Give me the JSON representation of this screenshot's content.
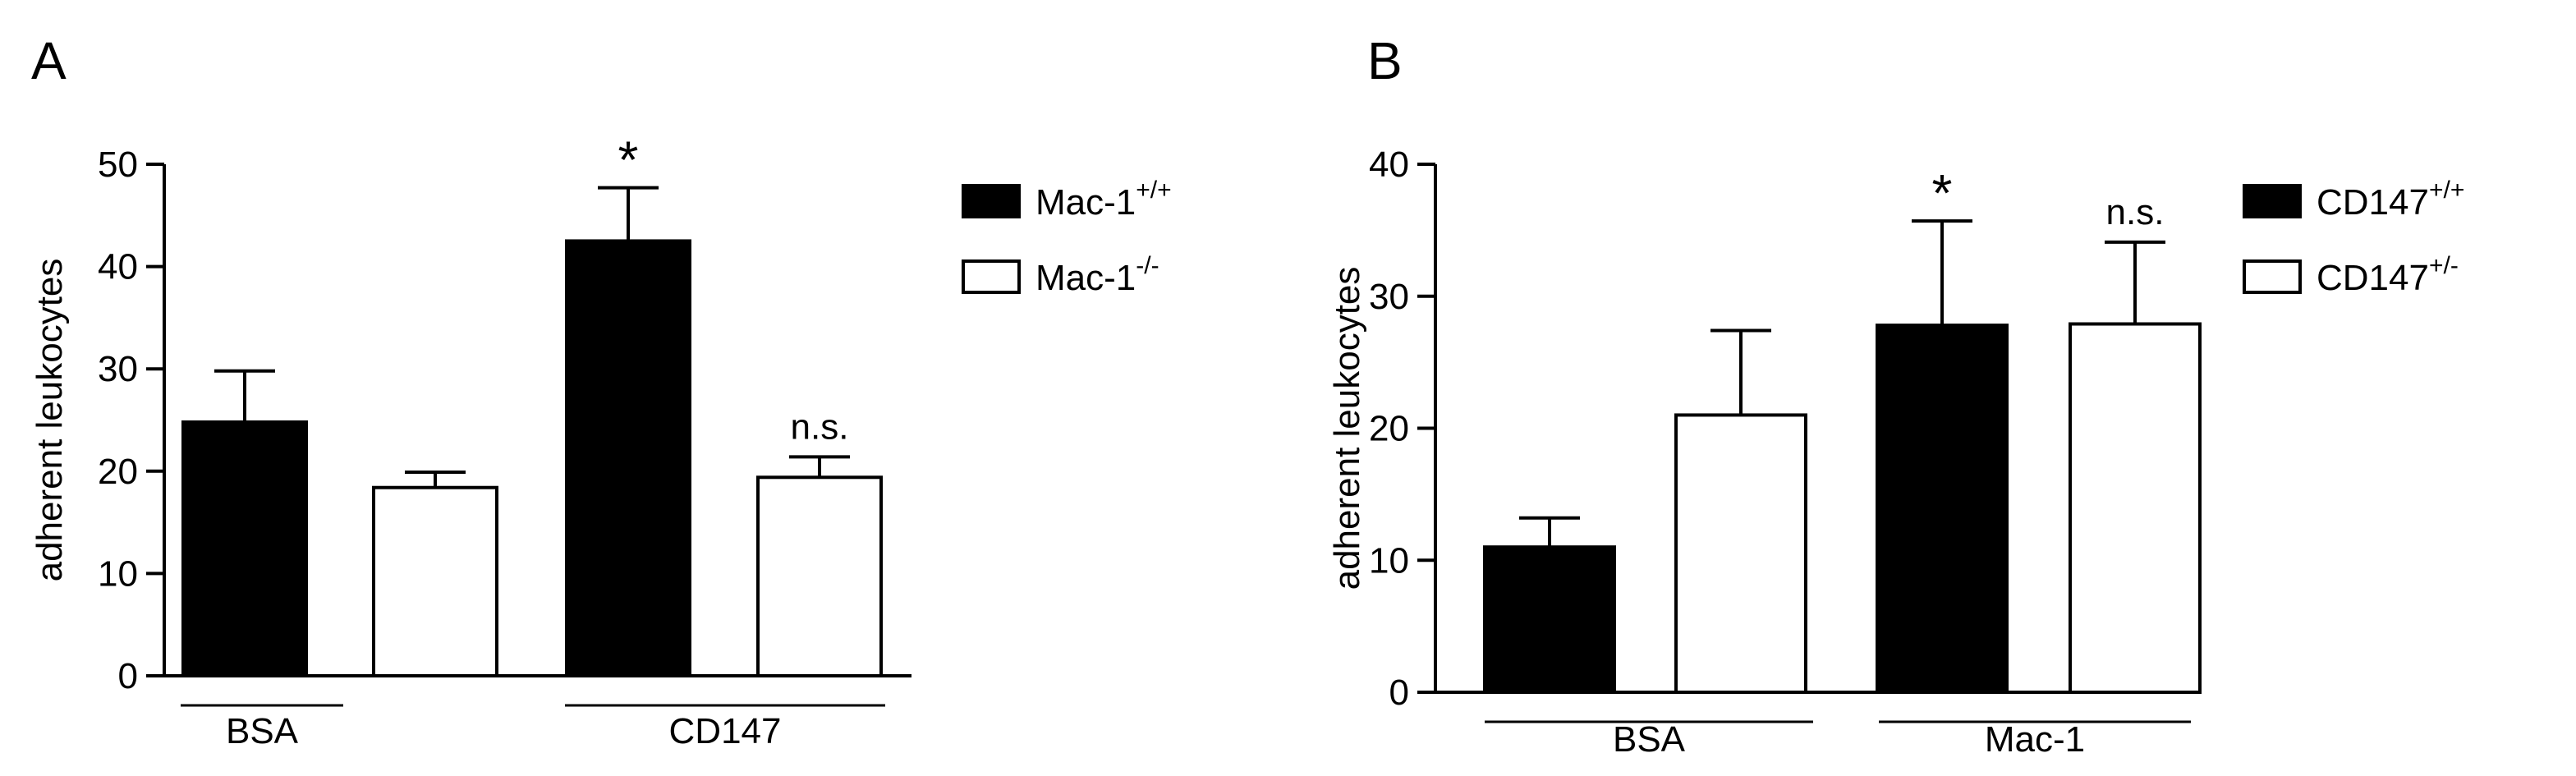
{
  "panels": [
    {
      "panel_label": "A",
      "ylabel": "adherent leukocytes",
      "yticks": [
        "0",
        "10",
        "20",
        "30",
        "40",
        "50"
      ],
      "legend": [
        {
          "base": "Mac-1",
          "sup": "+/+",
          "fill": "#000000"
        },
        {
          "base": "Mac-1",
          "sup": "-/-",
          "fill": "#ffffff"
        }
      ],
      "annotations": [
        "",
        "",
        "*",
        "n.s."
      ]
    },
    {
      "panel_label": "B",
      "ylabel": "adherent leukocytes",
      "yticks": [
        "0",
        "10",
        "20",
        "30",
        "40"
      ],
      "legend": [
        {
          "base": "CD147",
          "sup": "+/+",
          "fill": "#000000"
        },
        {
          "base": "CD147",
          "sup": "+/-",
          "fill": "#ffffff"
        }
      ],
      "annotations": [
        "",
        "",
        "*",
        "n.s."
      ]
    }
  ],
  "chart_data": [
    {
      "type": "bar",
      "ylabel": "adherent leukocytes",
      "ylim": [
        0,
        50
      ],
      "grid": false,
      "legend_position": "right",
      "categories": [
        "BSA",
        "CD147"
      ],
      "series": [
        {
          "name": "Mac-1+/+",
          "color": "#000000",
          "values": [
            24.8,
            42.5
          ],
          "errors": [
            5.0,
            5.2
          ]
        },
        {
          "name": "Mac-1-/-",
          "color": "#ffffff",
          "values": [
            18.4,
            19.4
          ],
          "errors": [
            1.5,
            2.0
          ]
        }
      ]
    },
    {
      "type": "bar",
      "ylabel": "adherent leukocytes",
      "ylim": [
        0,
        40
      ],
      "grid": false,
      "legend_position": "right",
      "categories": [
        "BSA",
        "Mac-1"
      ],
      "series": [
        {
          "name": "CD147+/+",
          "color": "#000000",
          "values": [
            11.0,
            27.8
          ],
          "errors": [
            2.2,
            7.9
          ]
        },
        {
          "name": "CD147+/-",
          "color": "#ffffff",
          "values": [
            21.0,
            27.9
          ],
          "errors": [
            6.4,
            6.2
          ]
        }
      ]
    }
  ]
}
